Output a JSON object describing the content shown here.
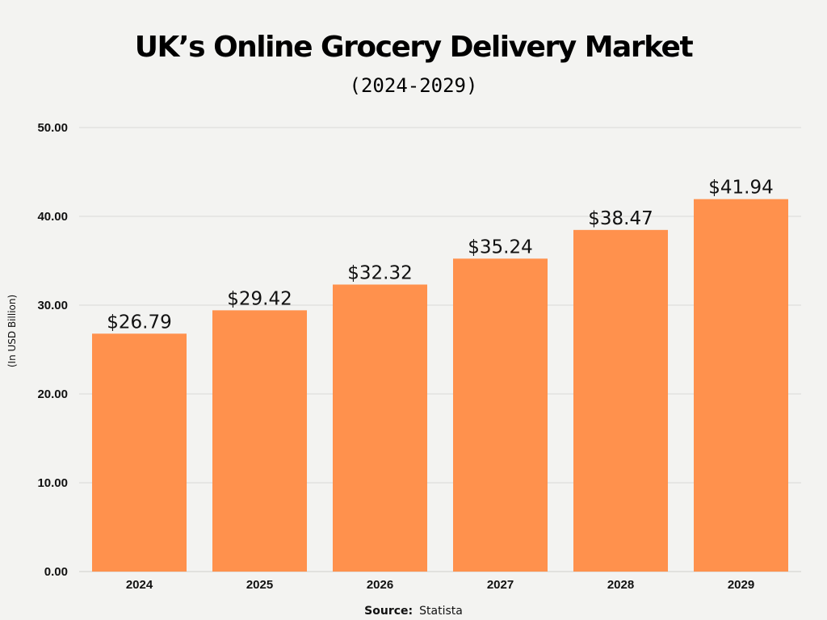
{
  "chart_data": {
    "type": "bar",
    "title": "UK’s Online Grocery Delivery Market",
    "subtitle": "(2024-2029)",
    "ylabel": "(In USD Billion)",
    "xlabel": "",
    "categories": [
      "2024",
      "2025",
      "2026",
      "2027",
      "2028",
      "2029"
    ],
    "values": [
      26.79,
      29.42,
      32.32,
      35.24,
      38.47,
      41.94
    ],
    "value_labels": [
      "$26.79",
      "$29.42",
      "$32.32",
      "$35.24",
      "$38.47",
      "$41.94"
    ],
    "ylim": [
      0,
      50
    ],
    "yticks": [
      "0.00",
      "10.00",
      "20.00",
      "30.00",
      "40.00",
      "50.00"
    ],
    "grid": true,
    "legend": "none",
    "bar_color": "#ff914d"
  },
  "source": {
    "label": "Source:",
    "text": "Statista"
  }
}
